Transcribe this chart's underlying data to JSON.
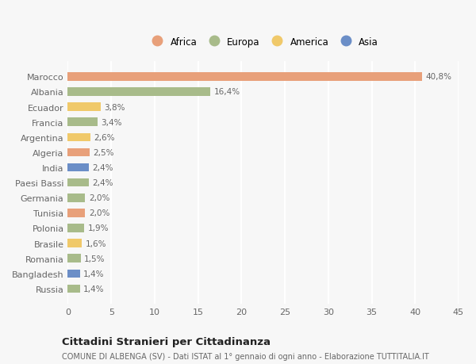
{
  "categories": [
    "Russia",
    "Bangladesh",
    "Romania",
    "Brasile",
    "Polonia",
    "Tunisia",
    "Germania",
    "Paesi Bassi",
    "India",
    "Algeria",
    "Argentina",
    "Francia",
    "Ecuador",
    "Albania",
    "Marocco"
  ],
  "values": [
    1.4,
    1.4,
    1.5,
    1.6,
    1.9,
    2.0,
    2.0,
    2.4,
    2.4,
    2.5,
    2.6,
    3.4,
    3.8,
    16.4,
    40.8
  ],
  "colors": [
    "#a8bb8a",
    "#6b8ec7",
    "#a8bb8a",
    "#f0c96a",
    "#a8bb8a",
    "#e8a07a",
    "#a8bb8a",
    "#a8bb8a",
    "#6b8ec7",
    "#e8a07a",
    "#f0c96a",
    "#a8bb8a",
    "#f0c96a",
    "#a8bb8a",
    "#e8a07a"
  ],
  "labels": [
    "1,4%",
    "1,4%",
    "1,5%",
    "1,6%",
    "1,9%",
    "2,0%",
    "2,0%",
    "2,4%",
    "2,4%",
    "2,5%",
    "2,6%",
    "3,4%",
    "3,8%",
    "16,4%",
    "40,8%"
  ],
  "legend": [
    {
      "label": "Africa",
      "color": "#e8a07a"
    },
    {
      "label": "Europa",
      "color": "#a8bb8a"
    },
    {
      "label": "America",
      "color": "#f0c96a"
    },
    {
      "label": "Asia",
      "color": "#6b8ec7"
    }
  ],
  "title": "Cittadini Stranieri per Cittadinanza",
  "subtitle": "COMUNE DI ALBENGA (SV) - Dati ISTAT al 1° gennaio di ogni anno - Elaborazione TUTTITALIA.IT",
  "xlim": [
    0,
    45
  ],
  "xticks": [
    0,
    5,
    10,
    15,
    20,
    25,
    30,
    35,
    40,
    45
  ],
  "background_color": "#f7f7f7",
  "grid_color": "#ffffff"
}
